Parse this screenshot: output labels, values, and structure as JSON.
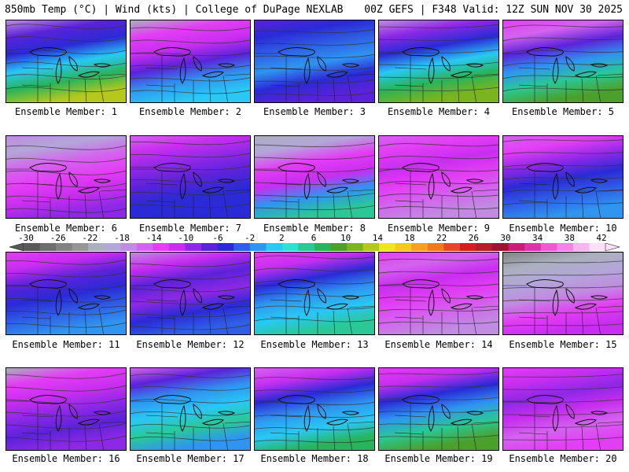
{
  "header": {
    "title_left": "850mb Temp (°C) | Wind (kts) | College of DuPage NEXLAB",
    "title_right": "00Z GEFS | F348 Valid: 12Z SUN NOV 30 2025"
  },
  "colorbar": {
    "ticks": [
      "-30",
      "-26",
      "-22",
      "-18",
      "-14",
      "-10",
      "-6",
      "-2",
      "2",
      "6",
      "10",
      "14",
      "18",
      "22",
      "26",
      "30",
      "34",
      "38",
      "42"
    ],
    "colors": [
      "#5a5a5a",
      "#6e6e6e",
      "#828282",
      "#969696",
      "#aab0be",
      "#b3a6d9",
      "#c08be0",
      "#d463ef",
      "#e33df5",
      "#c82ef0",
      "#8d28e6",
      "#5b22d9",
      "#2a2ad6",
      "#2f5fe6",
      "#2f95f0",
      "#29c8f5",
      "#2ee0d2",
      "#29c896",
      "#28b45a",
      "#4aa02a",
      "#7ab41e",
      "#b4c81e",
      "#f0e61e",
      "#f5c81e",
      "#f5a01e",
      "#f0781e",
      "#e64628",
      "#d21e1e",
      "#b41e28",
      "#9b1432",
      "#c81e78",
      "#dc32aa",
      "#ee5ad2",
      "#f582e6",
      "#fab4f0",
      "#fde0f8"
    ]
  },
  "panels": [
    {
      "label": "Ensemble Member: 1",
      "stops": [
        "#c08be0",
        "#5b22d9",
        "#2a2ad6",
        "#29c8f5",
        "#28b45a",
        "#b4c81e"
      ]
    },
    {
      "label": "Ensemble Member: 2",
      "stops": [
        "#aab0be",
        "#e33df5",
        "#c82ef0",
        "#5b22d9",
        "#2f95f0",
        "#29c8f5"
      ]
    },
    {
      "label": "Ensemble Member: 3",
      "stops": [
        "#5b22d9",
        "#2a2ad6",
        "#2f5fe6",
        "#2f95f0",
        "#2a2ad6",
        "#5b22d9"
      ]
    },
    {
      "label": "Ensemble Member: 4",
      "stops": [
        "#c08be0",
        "#8d28e6",
        "#2a2ad6",
        "#29c8f5",
        "#28b45a",
        "#7ab41e"
      ]
    },
    {
      "label": "Ensemble Member: 5",
      "stops": [
        "#e33df5",
        "#d463ef",
        "#5b22d9",
        "#2f95f0",
        "#29c896",
        "#4aa02a"
      ]
    },
    {
      "label": "Ensemble Member: 6",
      "stops": [
        "#c08be0",
        "#b3a6d9",
        "#d463ef",
        "#e33df5",
        "#c82ef0",
        "#8d28e6"
      ]
    },
    {
      "label": "Ensemble Member: 7",
      "stops": [
        "#d463ef",
        "#c82ef0",
        "#8d28e6",
        "#5b22d9",
        "#2a2ad6",
        "#2a2ad6"
      ]
    },
    {
      "label": "Ensemble Member: 8",
      "stops": [
        "#aab0be",
        "#b3a6d9",
        "#e33df5",
        "#c82ef0",
        "#2f95f0",
        "#29c896"
      ]
    },
    {
      "label": "Ensemble Member: 9",
      "stops": [
        "#d463ef",
        "#e33df5",
        "#c82ef0",
        "#e33df5",
        "#d463ef",
        "#c08be0"
      ]
    },
    {
      "label": "Ensemble Member: 10",
      "stops": [
        "#d463ef",
        "#e33df5",
        "#8d28e6",
        "#2a2ad6",
        "#2f5fe6",
        "#2f95f0"
      ]
    },
    {
      "label": "Ensemble Member: 11",
      "stops": [
        "#e33df5",
        "#c82ef0",
        "#5b22d9",
        "#2a2ad6",
        "#2f5fe6",
        "#2f95f0"
      ]
    },
    {
      "label": "Ensemble Member: 12",
      "stops": [
        "#c08be0",
        "#c82ef0",
        "#5b22d9",
        "#8d28e6",
        "#2a2ad6",
        "#2f5fe6"
      ]
    },
    {
      "label": "Ensemble Member: 13",
      "stops": [
        "#e33df5",
        "#c82ef0",
        "#2a2ad6",
        "#2f95f0",
        "#29c8f5",
        "#29c896"
      ]
    },
    {
      "label": "Ensemble Member: 14",
      "stops": [
        "#e33df5",
        "#d463ef",
        "#c82ef0",
        "#e33df5",
        "#d463ef",
        "#c08be0"
      ]
    },
    {
      "label": "Ensemble Member: 15",
      "stops": [
        "#828282",
        "#aab0be",
        "#b3a6d9",
        "#c08be0",
        "#e33df5",
        "#c82ef0"
      ]
    },
    {
      "label": "Ensemble Member: 16",
      "stops": [
        "#aab0be",
        "#e33df5",
        "#c82ef0",
        "#8d28e6",
        "#5b22d9",
        "#8d28e6"
      ]
    },
    {
      "label": "Ensemble Member: 17",
      "stops": [
        "#d463ef",
        "#5b22d9",
        "#2f95f0",
        "#29c8f5",
        "#29c896",
        "#2f95f0"
      ]
    },
    {
      "label": "Ensemble Member: 18",
      "stops": [
        "#d463ef",
        "#c82ef0",
        "#2a2ad6",
        "#2f95f0",
        "#29c8f5",
        "#28b45a"
      ]
    },
    {
      "label": "Ensemble Member: 19",
      "stops": [
        "#e33df5",
        "#c82ef0",
        "#2a2ad6",
        "#2f95f0",
        "#29c896",
        "#4aa02a"
      ]
    },
    {
      "label": "Ensemble Member: 20",
      "stops": [
        "#e33df5",
        "#c82ef0",
        "#8d28e6",
        "#c82ef0",
        "#d463ef",
        "#e33df5"
      ]
    }
  ]
}
